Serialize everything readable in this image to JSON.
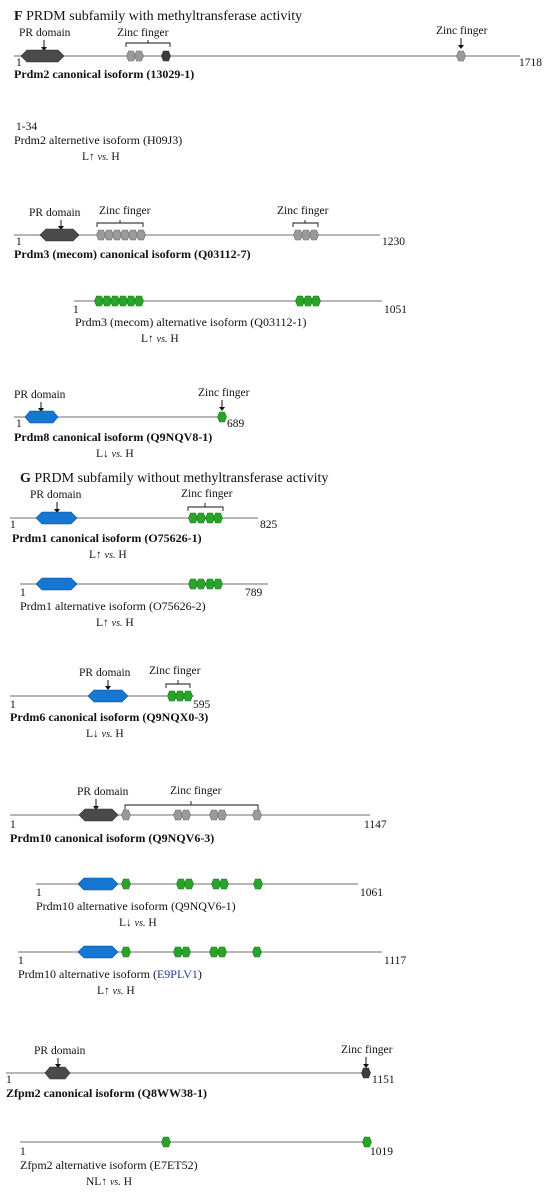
{
  "colors": {
    "pr_gray": "#4a4a4a",
    "pr_blue": "#1677d2",
    "zf_gray": "#9a9a9a",
    "zf_green": "#2aa32a",
    "line": "#8c8c8c",
    "link_text": "#1d3f8f"
  },
  "sections": {
    "F": {
      "letter": "F",
      "title": " PRDM subfamily with methyltransferase activity"
    },
    "G": {
      "letter": "G",
      "title": " PRDM subfamily without methyltransferase activity"
    }
  },
  "labels": {
    "pr_domain": "PR domain",
    "zinc_finger": "Zinc finger",
    "start": "1"
  },
  "isoforms": {
    "prdm2_can": {
      "name": "Prdm2 canonical isoform (13029-1)",
      "length": "1718"
    },
    "prdm2_alt": {
      "name": "Prdm2 alternetive isoform (H09J3)",
      "length": "1-34",
      "cmp_a": "L↑ ",
      "cmp_vs": "vs.",
      "cmp_b": " H"
    },
    "prdm3_can": {
      "name": "Prdm3 (mecom) canonical isoform (Q03112-7)",
      "length": "1230"
    },
    "prdm3_alt": {
      "name": "Prdm3 (mecom) alternative isoform (Q03112-1)",
      "length": "1051",
      "cmp_a": "L↑ ",
      "cmp_vs": "vs.",
      "cmp_b": " H"
    },
    "prdm8_can": {
      "name": "Prdm8  canonical isoform (Q9NQV8-1)",
      "length": "689",
      "cmp_a": "L↓ ",
      "cmp_vs": "vs.",
      "cmp_b": " H"
    },
    "prdm1_can": {
      "name": "Prdm1 canonical isoform (O75626-1)",
      "length": "825",
      "cmp_a": "L↑ ",
      "cmp_vs": "vs.",
      "cmp_b": " H"
    },
    "prdm1_alt": {
      "name": "Prdm1 alternative isoform (O75626-2)",
      "length": "789",
      "cmp_a": "L↑ ",
      "cmp_vs": "vs.",
      "cmp_b": " H"
    },
    "prdm6_can": {
      "name": "Prdm6 canonical isoform (Q9NQX0-3)",
      "length": "595",
      "cmp_a": "L↓ ",
      "cmp_vs": "vs.",
      "cmp_b": " H"
    },
    "prdm10_can": {
      "name": "Prdm10 canonical isoform (Q9NQV6-3)",
      "length": "1147"
    },
    "prdm10_alt1": {
      "name": "Prdm10 alternative isoform (Q9NQV6-1)",
      "length": "1061",
      "cmp_a": "L↓ ",
      "cmp_vs": "vs.",
      "cmp_b": " H"
    },
    "prdm10_alt2": {
      "name_prefix": "Prdm10 alternative isoform (",
      "name_link": "E9PLV1",
      "name_suffix": ")",
      "length": "1117",
      "cmp_a": "L↑ ",
      "cmp_vs": "vs.",
      "cmp_b": " H"
    },
    "zfpm2_can": {
      "name": "Zfpm2 canonical isoform (Q8WW38-1)",
      "length": "1151"
    },
    "zfpm2_alt": {
      "name": "Zfpm2 alternative isoform (E7ET52)",
      "length": "1019",
      "cmp_a": "NL↑ ",
      "cmp_vs": "vs.",
      "cmp_b": " H"
    }
  }
}
